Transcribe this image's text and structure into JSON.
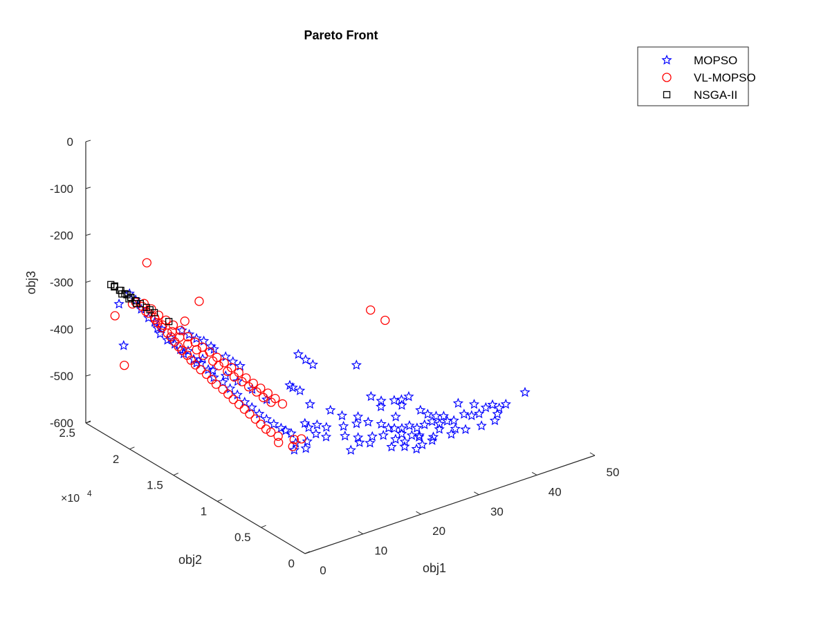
{
  "chart_data": {
    "type": "scatter",
    "projection": "3d",
    "title": "Pareto Front",
    "xlabel": "obj1",
    "ylabel": "obj2",
    "zlabel": "obj3",
    "y_exponent_label": "×10",
    "y_exponent_power": "4",
    "xlim": [
      0,
      50
    ],
    "ylim": [
      0,
      2.5
    ],
    "zlim": [
      -600,
      0
    ],
    "x_ticks": [
      {
        "value": 0,
        "label": "0"
      },
      {
        "value": 10,
        "label": "10"
      },
      {
        "value": 20,
        "label": "20"
      },
      {
        "value": 30,
        "label": "30"
      },
      {
        "value": 40,
        "label": "40"
      },
      {
        "value": 50,
        "label": "50"
      }
    ],
    "y_ticks": [
      {
        "value": 0,
        "label": "0"
      },
      {
        "value": 0.5,
        "label": "0.5"
      },
      {
        "value": 1,
        "label": "1"
      },
      {
        "value": 1.5,
        "label": "1.5"
      },
      {
        "value": 2,
        "label": "2"
      },
      {
        "value": 2.5,
        "label": "2.5"
      }
    ],
    "z_ticks": [
      {
        "value": 0,
        "label": "0"
      },
      {
        "value": -100,
        "label": "-100"
      },
      {
        "value": -200,
        "label": "-200"
      },
      {
        "value": -300,
        "label": "-300"
      },
      {
        "value": -400,
        "label": "-400"
      },
      {
        "value": -500,
        "label": "-500"
      },
      {
        "value": -600,
        "label": "-600"
      }
    ],
    "legend_position": "top-right",
    "grid": false,
    "series": [
      {
        "name": "MOPSO",
        "marker": "star",
        "color": "#0000ff",
        "points": [
          [
            1.5,
            2.1,
            -286
          ],
          [
            1.8,
            2.05,
            -295
          ],
          [
            2.0,
            2.0,
            -310
          ],
          [
            1.2,
            2.2,
            -318
          ],
          [
            2.5,
            1.95,
            -325
          ],
          [
            2.8,
            1.9,
            -330
          ],
          [
            3.2,
            1.85,
            -340
          ],
          [
            3.0,
            1.85,
            -350
          ],
          [
            3.5,
            1.8,
            -360
          ],
          [
            4.0,
            1.75,
            -365
          ],
          [
            4.2,
            1.7,
            -372
          ],
          [
            4.5,
            1.68,
            -380
          ],
          [
            5.0,
            1.6,
            -385
          ],
          [
            5.5,
            1.55,
            -390
          ],
          [
            6.0,
            1.5,
            -400
          ],
          [
            6.2,
            1.45,
            -412
          ],
          [
            7.0,
            1.4,
            -420
          ],
          [
            7.5,
            1.35,
            -430
          ],
          [
            8.0,
            1.3,
            -440
          ],
          [
            8.5,
            1.25,
            -452
          ],
          [
            9.0,
            1.2,
            -460
          ],
          [
            9.5,
            1.15,
            -470
          ],
          [
            10.0,
            1.1,
            -478
          ],
          [
            10.5,
            1.05,
            -485
          ],
          [
            11.0,
            1.0,
            -490
          ],
          [
            11.5,
            0.98,
            -495
          ],
          [
            12.0,
            0.95,
            -500
          ],
          [
            6.0,
            1.8,
            -350
          ],
          [
            6.5,
            1.75,
            -355
          ],
          [
            7.0,
            1.7,
            -360
          ],
          [
            7.5,
            1.65,
            -362
          ],
          [
            8.0,
            1.6,
            -370
          ],
          [
            8.5,
            1.6,
            -378
          ],
          [
            9.0,
            1.5,
            -385
          ],
          [
            9.5,
            1.45,
            -392
          ],
          [
            10.0,
            1.4,
            -398
          ],
          [
            12.5,
            1.0,
            -405
          ],
          [
            13.0,
            1.0,
            -412
          ],
          [
            13.5,
            0.95,
            -415
          ],
          [
            17.0,
            1.2,
            -380
          ],
          [
            17.5,
            1.15,
            -388
          ],
          [
            18.0,
            1.1,
            -395
          ],
          [
            24.0,
            1.0,
            -410
          ],
          [
            16.0,
            1.0,
            -460
          ],
          [
            18.0,
            0.9,
            -470
          ],
          [
            20.0,
            0.9,
            -490
          ],
          [
            22.0,
            0.85,
            -495
          ],
          [
            21.0,
            0.8,
            -500
          ],
          [
            23.0,
            0.8,
            -505
          ],
          [
            24.5,
            0.75,
            -510
          ],
          [
            25.0,
            0.7,
            -515
          ],
          [
            26.0,
            0.7,
            -520
          ],
          [
            27.0,
            0.68,
            -522
          ],
          [
            28.0,
            0.66,
            -518
          ],
          [
            29.0,
            0.64,
            -525
          ],
          [
            30.0,
            0.62,
            -520
          ],
          [
            31.0,
            0.6,
            -515
          ],
          [
            32.0,
            0.58,
            -522
          ],
          [
            33.0,
            0.56,
            -518
          ],
          [
            34.0,
            0.55,
            -520
          ],
          [
            35.0,
            0.5,
            -505
          ],
          [
            36.0,
            0.48,
            -510
          ],
          [
            37.0,
            0.46,
            -508
          ],
          [
            38.0,
            0.45,
            -498
          ],
          [
            39.0,
            0.44,
            -495
          ],
          [
            40.0,
            0.43,
            -505
          ],
          [
            41.0,
            0.42,
            -500
          ],
          [
            30.0,
            0.8,
            -480
          ],
          [
            29.5,
            0.85,
            -490
          ],
          [
            29.0,
            0.9,
            -495
          ],
          [
            44.0,
            0.4,
            -485
          ],
          [
            40.0,
            0.45,
            -520
          ],
          [
            15.0,
            0.95,
            -500
          ],
          [
            15.5,
            0.9,
            -510
          ],
          [
            16.5,
            0.85,
            -515
          ],
          [
            19.0,
            0.8,
            -518
          ],
          [
            20.5,
            0.75,
            -522
          ],
          [
            22.5,
            0.72,
            -525
          ],
          [
            26.5,
            0.65,
            -528
          ],
          [
            27.5,
            0.6,
            -530
          ],
          [
            28.5,
            0.58,
            -532
          ],
          [
            31.5,
            0.55,
            -528
          ],
          [
            33.5,
            0.5,
            -530
          ],
          [
            14.0,
            0.9,
            -520
          ],
          [
            13.0,
            0.85,
            -525
          ],
          [
            12.0,
            0.9,
            -515
          ],
          [
            11.0,
            0.85,
            -520
          ],
          [
            18.5,
            0.7,
            -535
          ],
          [
            21.5,
            0.68,
            -530
          ],
          [
            24.0,
            0.6,
            -540
          ],
          [
            25.5,
            0.55,
            -540
          ],
          [
            26.8,
            0.5,
            -545
          ],
          [
            27.8,
            0.5,
            -540
          ],
          [
            29.5,
            0.5,
            -538
          ],
          [
            32.5,
            0.48,
            -535
          ],
          [
            34.5,
            0.45,
            -530
          ],
          [
            36.5,
            0.4,
            -525
          ],
          [
            38.5,
            0.38,
            -520
          ],
          [
            2.0,
            2.2,
            -410
          ],
          [
            25.0,
            0.9,
            -470
          ],
          [
            26.0,
            0.85,
            -478
          ],
          [
            25.5,
            0.82,
            -485
          ],
          [
            28.5,
            0.78,
            -490
          ],
          [
            30.5,
            0.7,
            -500
          ],
          [
            35.5,
            0.6,
            -495
          ],
          [
            37.5,
            0.55,
            -500
          ],
          [
            31.0,
            0.65,
            -505
          ],
          [
            32.0,
            0.62,
            -510
          ],
          [
            33.0,
            0.6,
            -512
          ],
          [
            27.0,
            0.75,
            -505
          ],
          [
            19.5,
            0.85,
            -505
          ],
          [
            17.0,
            0.88,
            -500
          ],
          [
            16.0,
            0.92,
            -495
          ],
          [
            14.5,
            0.96,
            -490
          ],
          [
            20.0,
            0.7,
            -525
          ],
          [
            23.5,
            0.66,
            -520
          ],
          [
            25.0,
            0.62,
            -530
          ],
          [
            26.0,
            0.58,
            -535
          ],
          [
            28.0,
            0.55,
            -530
          ],
          [
            30.0,
            0.52,
            -535
          ],
          [
            5.5,
            1.6,
            -395
          ],
          [
            6.8,
            1.5,
            -405
          ],
          [
            7.8,
            1.42,
            -412
          ],
          [
            8.8,
            1.35,
            -420
          ],
          [
            9.8,
            1.25,
            -430
          ],
          [
            10.8,
            1.15,
            -445
          ],
          [
            3.8,
            1.78,
            -355
          ],
          [
            4.8,
            1.65,
            -372
          ],
          [
            5.8,
            1.55,
            -382
          ],
          [
            3.3,
            1.9,
            -345
          ]
        ]
      },
      {
        "name": "VL-MOPSO",
        "marker": "circle",
        "color": "#ff0000",
        "points": [
          [
            1.8,
            2.05,
            -300
          ],
          [
            2.2,
            2.0,
            -305
          ],
          [
            2.5,
            1.95,
            -315
          ],
          [
            2.8,
            1.9,
            -320
          ],
          [
            3.0,
            1.88,
            -330
          ],
          [
            3.3,
            1.85,
            -338
          ],
          [
            3.5,
            1.8,
            -345
          ],
          [
            3.8,
            1.78,
            -352
          ],
          [
            4.0,
            1.75,
            -360
          ],
          [
            4.2,
            1.72,
            -368
          ],
          [
            4.5,
            1.7,
            -375
          ],
          [
            4.8,
            1.66,
            -382
          ],
          [
            5.0,
            1.63,
            -390
          ],
          [
            5.3,
            1.6,
            -398
          ],
          [
            5.6,
            1.56,
            -405
          ],
          [
            6.0,
            1.52,
            -412
          ],
          [
            6.3,
            1.48,
            -420
          ],
          [
            6.6,
            1.45,
            -428
          ],
          [
            7.0,
            1.4,
            -435
          ],
          [
            7.3,
            1.36,
            -442
          ],
          [
            7.6,
            1.32,
            -450
          ],
          [
            8.0,
            1.28,
            -458
          ],
          [
            8.3,
            1.24,
            -465
          ],
          [
            8.6,
            1.2,
            -472
          ],
          [
            9.0,
            1.16,
            -480
          ],
          [
            9.3,
            1.12,
            -488
          ],
          [
            9.6,
            1.08,
            -495
          ],
          [
            10.0,
            1.05,
            -500
          ],
          [
            2.5,
            2.0,
            -300
          ],
          [
            3.0,
            1.95,
            -308
          ],
          [
            3.5,
            1.9,
            -318
          ],
          [
            4.0,
            1.85,
            -325
          ],
          [
            4.5,
            1.8,
            -332
          ],
          [
            5.0,
            1.75,
            -340
          ],
          [
            5.5,
            1.7,
            -350
          ],
          [
            6.0,
            1.65,
            -358
          ],
          [
            6.5,
            1.6,
            -365
          ],
          [
            7.0,
            1.55,
            -372
          ],
          [
            7.5,
            1.5,
            -380
          ],
          [
            8.0,
            1.45,
            -388
          ],
          [
            8.5,
            1.4,
            -395
          ],
          [
            9.0,
            1.35,
            -402
          ],
          [
            9.5,
            1.3,
            -410
          ],
          [
            10.0,
            1.25,
            -418
          ],
          [
            10.5,
            1.2,
            -425
          ],
          [
            11.0,
            1.15,
            -432
          ],
          [
            11.5,
            1.1,
            -440
          ],
          [
            12.0,
            1.05,
            -448
          ],
          [
            0.5,
            2.2,
            -340
          ],
          [
            0.6,
            2.1,
            -435
          ],
          [
            6.0,
            2.2,
            -250
          ],
          [
            6.5,
            1.8,
            -332
          ],
          [
            12.0,
            2.0,
            -335
          ],
          [
            10.5,
            1.0,
            -505
          ],
          [
            9.8,
            0.95,
            -510
          ],
          [
            11.5,
            0.9,
            -520
          ],
          [
            12.5,
            0.95,
            -515
          ],
          [
            13.0,
            0.9,
            -510
          ],
          [
            34.0,
            1.5,
            -390
          ],
          [
            35.0,
            1.4,
            -405
          ],
          [
            2.0,
            2.1,
            -310
          ],
          [
            2.8,
            2.0,
            -318
          ],
          [
            3.2,
            1.92,
            -328
          ],
          [
            3.6,
            1.86,
            -335
          ],
          [
            4.3,
            1.8,
            -345
          ],
          [
            4.7,
            1.74,
            -352
          ],
          [
            5.2,
            1.68,
            -362
          ],
          [
            5.8,
            1.62,
            -370
          ],
          [
            6.2,
            1.57,
            -378
          ],
          [
            6.8,
            1.5,
            -385
          ],
          [
            7.2,
            1.46,
            -392
          ],
          [
            7.8,
            1.4,
            -400
          ],
          [
            8.2,
            1.35,
            -408
          ],
          [
            8.8,
            1.3,
            -415
          ],
          [
            9.2,
            1.25,
            -422
          ],
          [
            9.8,
            1.2,
            -430
          ],
          [
            10.2,
            1.15,
            -438
          ],
          [
            10.8,
            1.1,
            -445
          ]
        ]
      },
      {
        "name": "NSGA-II",
        "marker": "square",
        "color": "#000000",
        "points": [
          [
            1.2,
            2.25,
            -285
          ],
          [
            1.5,
            2.2,
            -290
          ],
          [
            1.8,
            2.15,
            -295
          ],
          [
            2.0,
            2.12,
            -298
          ],
          [
            2.3,
            2.08,
            -302
          ],
          [
            2.6,
            2.05,
            -306
          ],
          [
            2.9,
            2.0,
            -310
          ],
          [
            3.2,
            1.98,
            -314
          ],
          [
            3.5,
            1.95,
            -318
          ],
          [
            1.3,
            2.3,
            -288
          ],
          [
            1.6,
            2.28,
            -292
          ],
          [
            1.9,
            2.24,
            -296
          ],
          [
            2.2,
            2.2,
            -300
          ],
          [
            2.5,
            2.15,
            -304
          ],
          [
            4.5,
            1.85,
            -330
          ],
          [
            1.4,
            2.18,
            -295
          ],
          [
            1.7,
            2.12,
            -300
          ],
          [
            2.1,
            2.06,
            -305
          ]
        ]
      }
    ]
  }
}
